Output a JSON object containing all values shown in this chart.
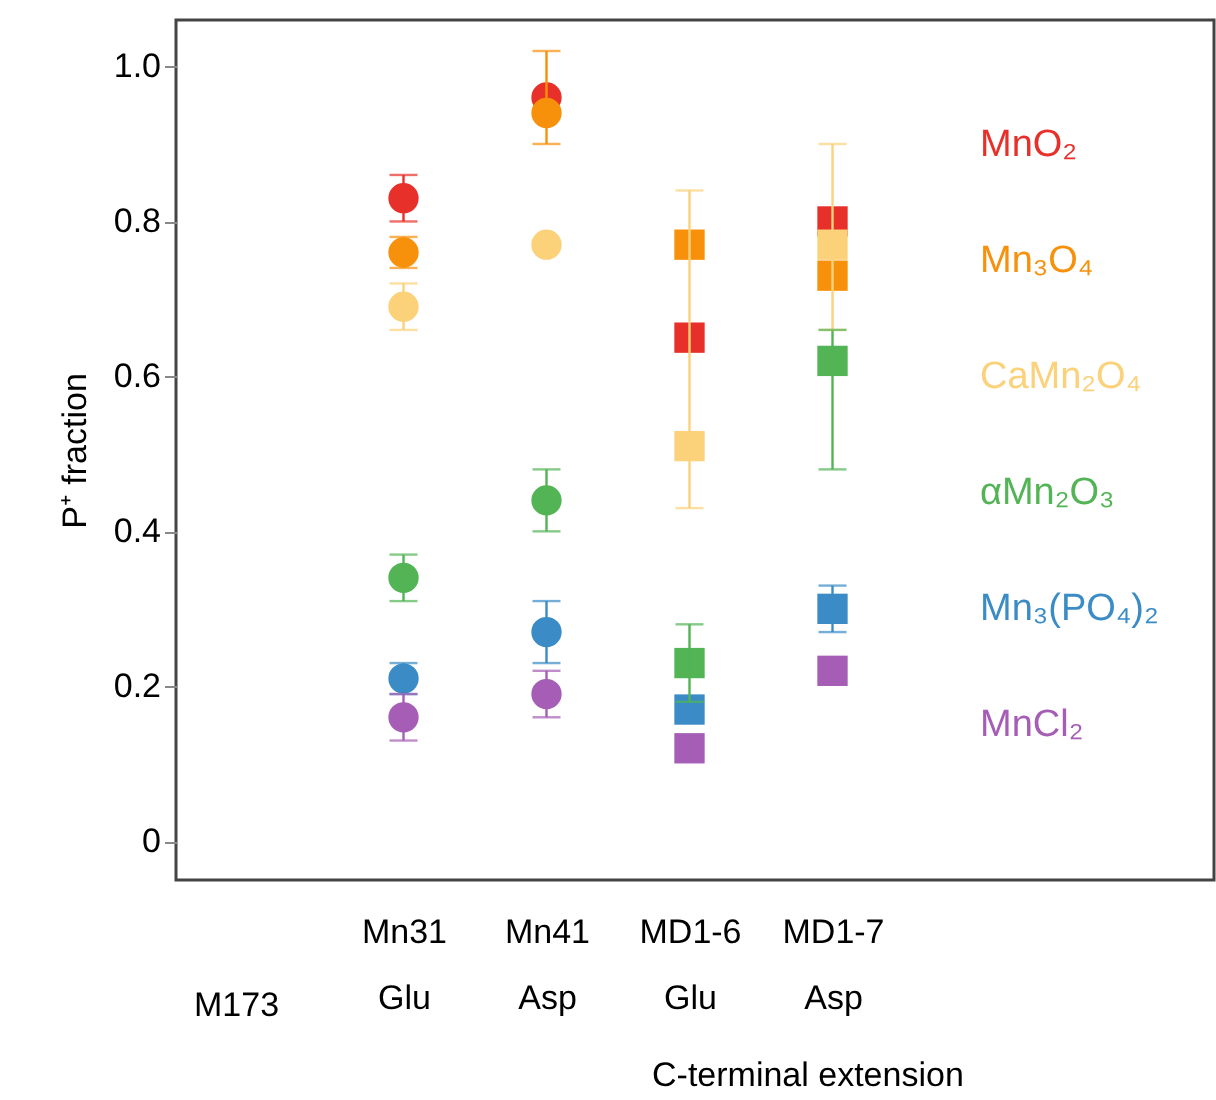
{
  "chart_data": {
    "type": "scatter",
    "ylabel": "P⁺ fraction",
    "categories": [
      "Mn31\nGlu",
      "Mn41\nAsp",
      "MD1-6\nGlu",
      "MD1-7\nAsp"
    ],
    "ylim": [
      -0.05,
      1.06
    ],
    "yticks": [
      0,
      {
        "value": 0.2,
        "label": "0.2"
      },
      {
        "value": 0.4,
        "label": "0.4"
      },
      {
        "value": 0.6,
        "label": "0.6"
      },
      {
        "value": 0.8,
        "label": "0.8"
      },
      {
        "value": 1,
        "label": "1.0"
      }
    ],
    "grid": false,
    "legend": "right",
    "series": [
      {
        "name": "MnO₂",
        "color": "#e8302a",
        "marker": "circle",
        "values": [
          0.83,
          0.96,
          null,
          null
        ],
        "errors": [
          0.03,
          null,
          null,
          null
        ]
      },
      {
        "name": "Mn₃O₄",
        "color": "#f7900a",
        "marker": "circle",
        "values": [
          0.76,
          0.94,
          null,
          null
        ],
        "errors": [
          0.02,
          [
            0.9,
            1.02
          ],
          null,
          null
        ]
      },
      {
        "name": "CaMn₂O₄",
        "color": "#fbd17a",
        "marker": "circle",
        "values": [
          0.69,
          0.77,
          null,
          null
        ],
        "errors": [
          0.03,
          null,
          null,
          null
        ]
      },
      {
        "name": "αMn₂O₃",
        "color": "#52b455",
        "marker": "circle",
        "values": [
          0.34,
          0.44,
          null,
          null
        ],
        "errors": [
          0.03,
          0.04,
          null,
          null
        ]
      },
      {
        "name": "Mn₃(PO₄)₂",
        "color": "#3b8cc6",
        "marker": "circle",
        "values": [
          0.21,
          0.27,
          null,
          null
        ],
        "errors": [
          0.02,
          0.04,
          null,
          null
        ]
      },
      {
        "name": "MnCl₂",
        "color": "#a55db5",
        "marker": "circle",
        "values": [
          0.16,
          0.19,
          null,
          null
        ],
        "errors": [
          0.03,
          0.03,
          null,
          null
        ]
      },
      {
        "color": "#e8302a",
        "marker": "square",
        "values": [
          null,
          null,
          0.65,
          0.8
        ]
      },
      {
        "color": "#f7900a",
        "marker": "square",
        "values": [
          null,
          null,
          0.77,
          0.73
        ]
      },
      {
        "color": "#fbd17a",
        "marker": "square",
        "values": [
          null,
          null,
          0.51,
          0.77
        ],
        "errors": [
          null,
          null,
          [
            0.43,
            0.84
          ],
          [
            0.66,
            0.9
          ]
        ]
      },
      {
        "color": "#52b455",
        "marker": "square",
        "values": [
          null,
          null,
          0.23,
          0.62
        ],
        "errors": [
          null,
          null,
          0.05,
          [
            0.48,
            0.66
          ]
        ]
      },
      {
        "color": "#3b8cc6",
        "marker": "square",
        "values": [
          null,
          null,
          0.17,
          0.3
        ],
        "errors": [
          null,
          null,
          null,
          0.03
        ]
      },
      {
        "color": "#a55db5",
        "marker": "square",
        "values": [
          null,
          null,
          0.12,
          0.22
        ]
      }
    ],
    "annotations": [
      "M173",
      "C-terminal extension"
    ]
  }
}
